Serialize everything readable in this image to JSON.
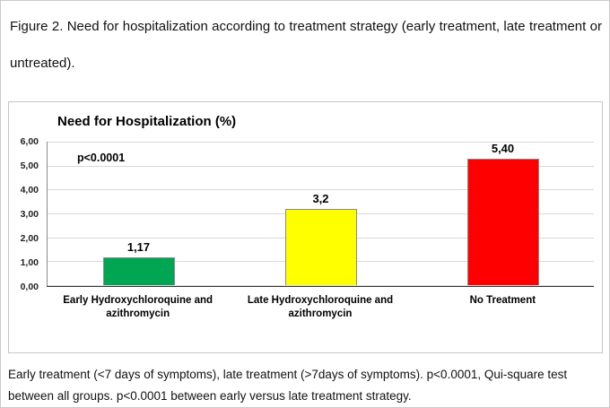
{
  "figure": {
    "caption_top": "Figure 2. Need for hospitalization according to treatment strategy (early treatment, late treatment or untreated).",
    "caption_bottom": "Early treatment (<7 days of symptoms), late treatment (>7days of symptoms). p<0.0001, Qui-square test between all groups. p<0.0001 between early versus late treatment strategy."
  },
  "chart_data": {
    "type": "bar",
    "title": "Need  for Hospitalization (%)",
    "categories": [
      "Early Hydroxychloroquine and azithromycin",
      "Late Hydroxychloroquine and azithromycin",
      "No Treatment"
    ],
    "values": [
      1.17,
      3.2,
      5.4
    ],
    "value_labels": [
      "1,17",
      "3,2",
      "5,40"
    ],
    "bar_colors": [
      "#00a651",
      "#ffff00",
      "#fe0000"
    ],
    "ylim": [
      0,
      6
    ],
    "ytick_labels": [
      "6,00",
      "5,00",
      "4,00",
      "3,00",
      "2,00",
      "1,00",
      "0,00"
    ],
    "annotation": "p<0.0001",
    "xlabel": "",
    "ylabel": "",
    "grid": true,
    "legend": false
  }
}
